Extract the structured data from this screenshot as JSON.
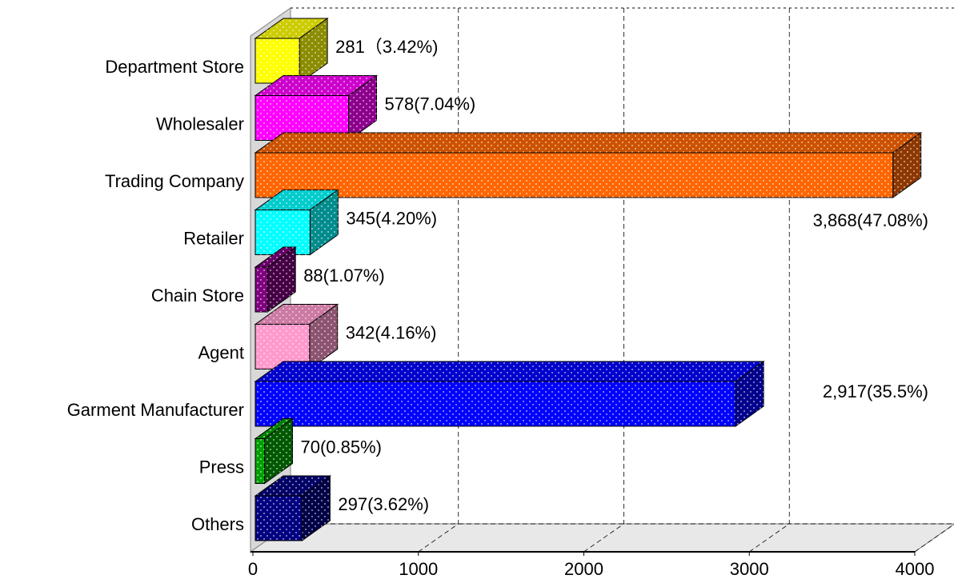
{
  "chart_data": {
    "type": "bar3d",
    "categories": [
      "Department Store",
      "Wholesaler",
      "Trading Company",
      "Retailer",
      "Chain Store",
      "Agent",
      "Garment Manufacturer",
      "Press",
      "Others"
    ],
    "values": [
      281,
      578,
      3868,
      345,
      88,
      342,
      2917,
      70,
      297
    ],
    "value_labels": [
      "281（3.42%)",
      "578(7.04%)",
      "3,868(47.08%)",
      "345(4.20%)",
      "88(1.07%)",
      "342(4.16%)",
      "2,917(35.5%)",
      "70(0.85%)",
      "297(3.62%)"
    ],
    "colors": [
      "#ffff00",
      "#ff00ff",
      "#ff6600",
      "#00ffff",
      "#800080",
      "#ff99cc",
      "#0000ff",
      "#00a000",
      "#000080"
    ],
    "xlim": [
      0,
      4000
    ],
    "xticks": [
      0,
      1000,
      2000,
      3000,
      4000
    ],
    "grid": true
  }
}
